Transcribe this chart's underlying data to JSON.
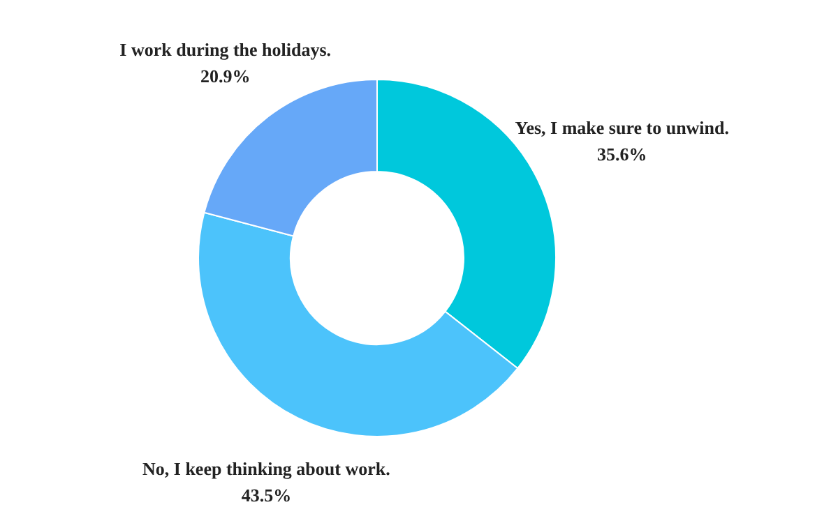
{
  "chart_data": {
    "type": "donut",
    "categories": [
      "Yes, I make sure to unwind.",
      "No, I keep thinking about work.",
      "I work during the holidays."
    ],
    "values": [
      35.6,
      43.5,
      20.9
    ],
    "colors": [
      "#00c8dc",
      "#4cc3fb",
      "#66a8f8"
    ],
    "value_labels": [
      "35.6%",
      "43.5%",
      "20.9%"
    ]
  }
}
